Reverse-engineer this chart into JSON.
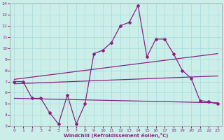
{
  "xlabel": "Windchill (Refroidissement éolien,°C)",
  "xlim": [
    -0.5,
    23.5
  ],
  "ylim": [
    3,
    14
  ],
  "xticks": [
    0,
    1,
    2,
    3,
    4,
    5,
    6,
    7,
    8,
    9,
    10,
    11,
    12,
    13,
    14,
    15,
    16,
    17,
    18,
    19,
    20,
    21,
    22,
    23
  ],
  "yticks": [
    3,
    4,
    5,
    6,
    7,
    8,
    9,
    10,
    11,
    12,
    13,
    14
  ],
  "background_color": "#cceee8",
  "line_color": "#882288",
  "grid_color": "#aadddd",
  "line1_x": [
    0,
    1,
    2,
    3,
    4,
    5,
    6,
    7,
    8,
    9,
    10,
    11,
    12,
    13,
    14,
    15,
    16,
    17,
    18,
    19,
    20,
    21,
    22,
    23
  ],
  "line1_y": [
    7.0,
    7.0,
    5.5,
    5.5,
    4.2,
    3.2,
    5.8,
    3.2,
    5.0,
    9.5,
    9.8,
    10.5,
    12.0,
    12.3,
    13.8,
    9.2,
    10.8,
    10.8,
    9.5,
    8.0,
    7.3,
    5.3,
    5.2,
    5.0
  ],
  "line2_x": [
    0,
    23
  ],
  "line2_y": [
    7.2,
    9.5
  ],
  "line3_x": [
    0,
    23
  ],
  "line3_y": [
    6.8,
    7.5
  ],
  "line4_x": [
    0,
    23
  ],
  "line4_y": [
    5.5,
    5.1
  ]
}
